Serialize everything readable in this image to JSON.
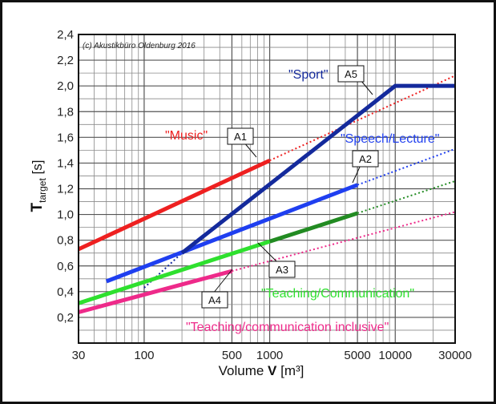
{
  "chart_data": {
    "type": "line",
    "copyright": "(c) Akustikbüro Oldenburg 2016",
    "xlabel_prefix": "Volume ",
    "xlabel_bold": "V",
    "xlabel_suffix": " [m³]",
    "ylabel_main": "T",
    "ylabel_sub": "target",
    "ylabel_suffix": " [s]",
    "x_scale": "log",
    "xlim": [
      30,
      30000
    ],
    "ylim": [
      0,
      2.4
    ],
    "grid": true,
    "x_ticks": [
      {
        "v": 30,
        "label": "30"
      },
      {
        "v": 100,
        "label": "100"
      },
      {
        "v": 500,
        "label": "500"
      },
      {
        "v": 1000,
        "label": "1000"
      },
      {
        "v": 5000,
        "label": "5000"
      },
      {
        "v": 10000,
        "label": "10000"
      },
      {
        "v": 30000,
        "label": "30000"
      }
    ],
    "y_ticks": [
      {
        "v": 0.2,
        "label": "0,2"
      },
      {
        "v": 0.4,
        "label": "0,4"
      },
      {
        "v": 0.6,
        "label": "0,6"
      },
      {
        "v": 0.8,
        "label": "0,8"
      },
      {
        "v": 1.0,
        "label": "1,0"
      },
      {
        "v": 1.2,
        "label": "1,2"
      },
      {
        "v": 1.4,
        "label": "1,4"
      },
      {
        "v": 1.6,
        "label": "1,6"
      },
      {
        "v": 1.8,
        "label": "1,8"
      },
      {
        "v": 2.0,
        "label": "2,0"
      },
      {
        "v": 2.2,
        "label": "2,2"
      },
      {
        "v": 2.4,
        "label": "2,4"
      }
    ],
    "series": [
      {
        "name": "\"Music\"",
        "code": "A1",
        "color": "#ee2020",
        "solid": [
          [
            30,
            0.73
          ],
          [
            1000,
            1.42
          ]
        ],
        "dotted": [
          [
            1000,
            1.42
          ],
          [
            30000,
            2.08
          ]
        ]
      },
      {
        "name": "\"Speech/Lecture\"",
        "code": "A2",
        "color": "#1f3ff0",
        "solid": [
          [
            50,
            0.48
          ],
          [
            5000,
            1.23
          ]
        ],
        "dotted": [
          [
            5000,
            1.23
          ],
          [
            30000,
            1.51
          ]
        ]
      },
      {
        "name": "\"Teaching/Communication\"",
        "code": "A3",
        "color": "#2ee02e",
        "solid": [
          [
            30,
            0.31
          ],
          [
            1000,
            0.79
          ]
        ],
        "solid2": {
          "color": "#228b22",
          "points": [
            [
              1000,
              0.79
            ],
            [
              5000,
              1.01
            ]
          ]
        },
        "dotted": [
          [
            5000,
            1.01
          ],
          [
            30000,
            1.26
          ]
        ],
        "dotted_color": "#228b22"
      },
      {
        "name": "\"Teaching/communication inclusive\"",
        "code": "A4",
        "color": "#ee2a8a",
        "solid": [
          [
            30,
            0.24
          ],
          [
            500,
            0.56
          ]
        ],
        "dotted": [
          [
            500,
            0.56
          ],
          [
            30000,
            1.02
          ]
        ]
      },
      {
        "name": "\"Sport\"",
        "code": "A5",
        "color": "#142a9c",
        "solid": [
          [
            200,
            0.7
          ],
          [
            10000,
            2.0
          ],
          [
            30000,
            2.0
          ]
        ],
        "dotted": [
          [
            100,
            0.43
          ],
          [
            200,
            0.7
          ]
        ]
      }
    ]
  }
}
